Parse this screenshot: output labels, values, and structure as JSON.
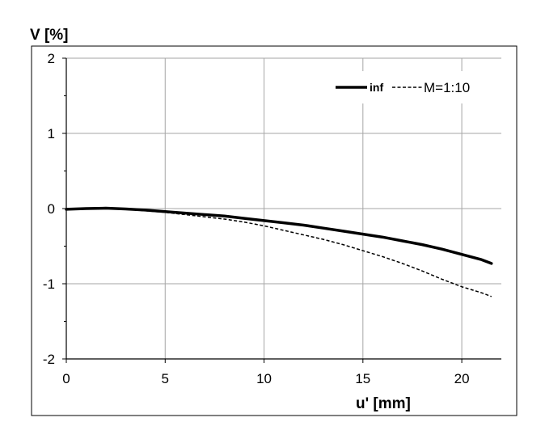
{
  "chart_data": {
    "type": "line",
    "title": "",
    "xlabel": "u' [mm]",
    "ylabel": "V [%]",
    "xlim": [
      0,
      22
    ],
    "ylim": [
      -2,
      2
    ],
    "x_ticks": [
      0,
      5,
      10,
      15,
      20
    ],
    "y_ticks": [
      -2,
      -1,
      0,
      1,
      2
    ],
    "x_tick_labels": [
      "0",
      "5",
      "10",
      "15",
      "20"
    ],
    "y_tick_labels": [
      "-2",
      "-1",
      "0",
      "1",
      "2"
    ],
    "grid": true,
    "legend_position": "top-right",
    "series": [
      {
        "name": "inf",
        "style": "solid-thick",
        "color": "#000000",
        "x": [
          0,
          1,
          2,
          3,
          4,
          5,
          6,
          7,
          8,
          9,
          10,
          11,
          12,
          13,
          14,
          15,
          16,
          17,
          18,
          19,
          20,
          21,
          21.5
        ],
        "y": [
          -0.01,
          0.0,
          0.005,
          -0.005,
          -0.02,
          -0.04,
          -0.06,
          -0.08,
          -0.1,
          -0.13,
          -0.16,
          -0.19,
          -0.22,
          -0.26,
          -0.3,
          -0.34,
          -0.38,
          -0.43,
          -0.48,
          -0.54,
          -0.61,
          -0.68,
          -0.73
        ]
      },
      {
        "name": "M=1:10",
        "style": "dashed",
        "color": "#000000",
        "x": [
          0,
          1,
          2,
          3,
          4,
          5,
          6,
          7,
          8,
          9,
          10,
          11,
          12,
          13,
          14,
          15,
          16,
          17,
          18,
          19,
          20,
          21,
          21.5
        ],
        "y": [
          -0.01,
          0.0,
          0.005,
          -0.01,
          -0.03,
          -0.05,
          -0.08,
          -0.11,
          -0.14,
          -0.18,
          -0.23,
          -0.29,
          -0.35,
          -0.41,
          -0.48,
          -0.56,
          -0.64,
          -0.73,
          -0.83,
          -0.94,
          -1.04,
          -1.12,
          -1.17
        ]
      }
    ]
  }
}
